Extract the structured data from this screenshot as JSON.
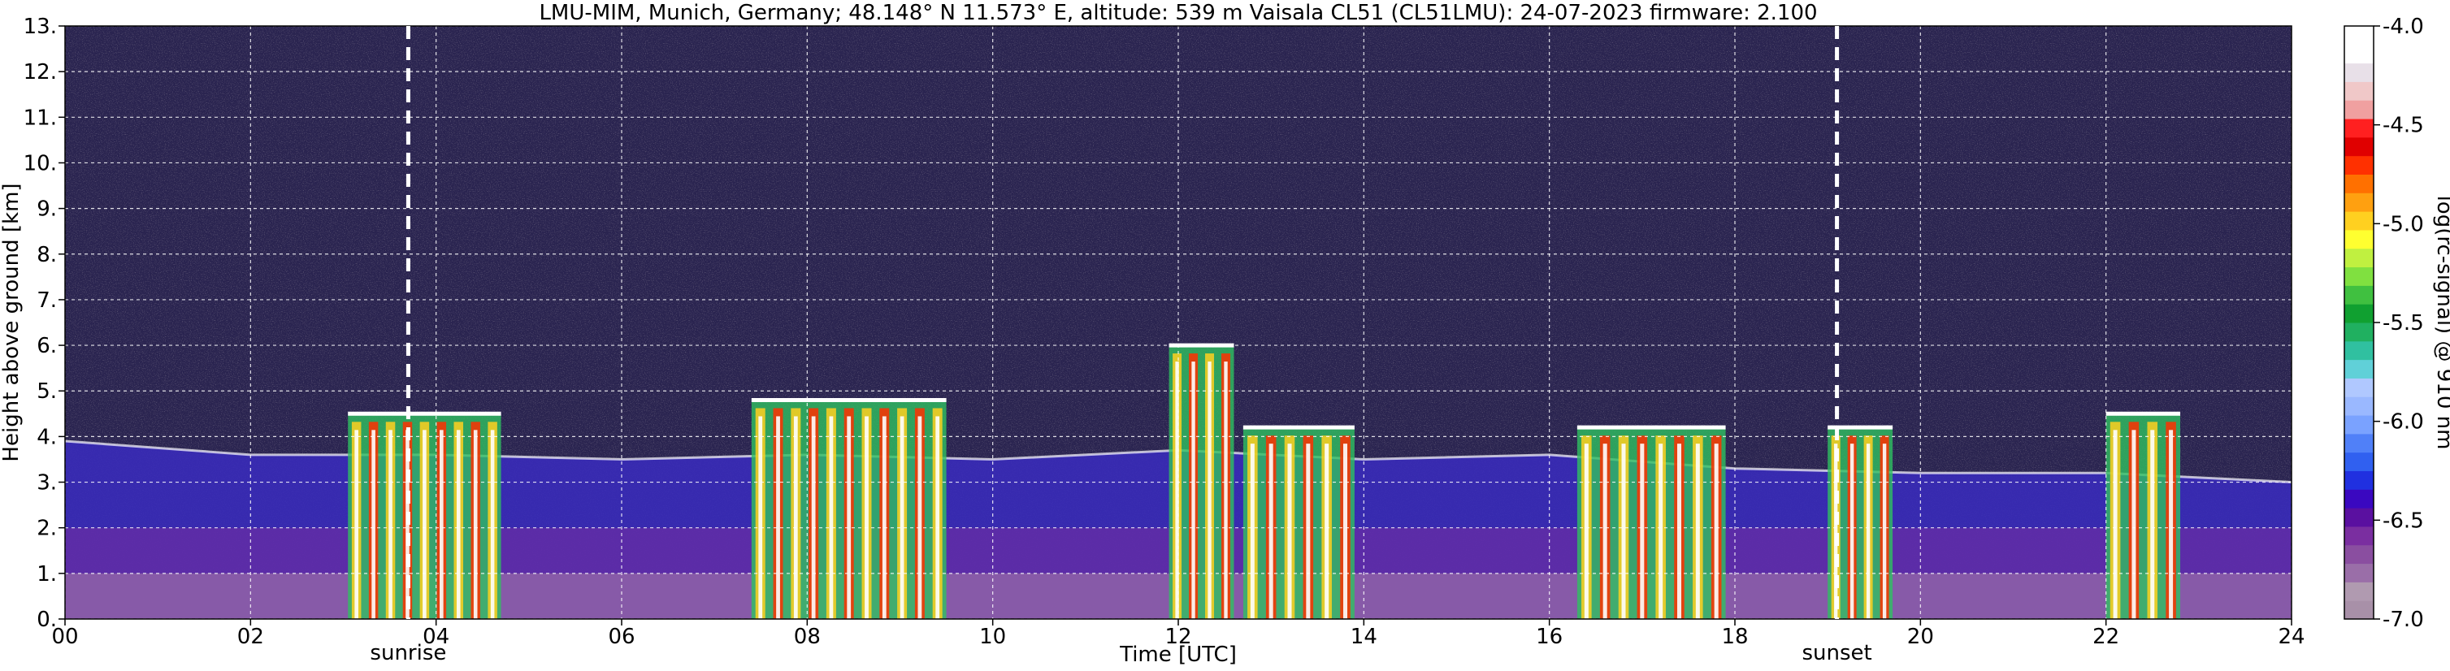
{
  "chart_data": {
    "type": "heatmap",
    "title": "LMU-MIM, Munich, Germany; 48.148° N 11.573° E, altitude: 539 m    Vaisala CL51 (CL51LMU): 24-07-2023    firmware: 2.100",
    "xlabel": "Time [UTC]",
    "ylabel": "Height above ground [km]",
    "xlim": [
      0,
      24
    ],
    "ylim": [
      0,
      13
    ],
    "x_ticks": [
      "00",
      "02",
      "04",
      "06",
      "08",
      "10",
      "12",
      "14",
      "16",
      "18",
      "20",
      "22",
      "24"
    ],
    "y_ticks": [
      "0.",
      "1.",
      "2.",
      "3.",
      "4.",
      "5.",
      "6.",
      "7.",
      "8.",
      "9.",
      "10.",
      "11.",
      "12.",
      "13."
    ],
    "grid": true,
    "sunrise": {
      "label": "sunrise",
      "time": 3.7
    },
    "sunset": {
      "label": "sunset",
      "time": 19.1
    },
    "colorbar": {
      "label": "log(rc-signal) @ 910 nm",
      "range": [
        -7.0,
        -4.0
      ],
      "ticks": [
        "-4.0",
        "-4.5",
        "-5.0",
        "-5.5",
        "-6.0",
        "-6.5",
        "-7.0"
      ],
      "colors": [
        "#a890a8",
        "#b09ab0",
        "#9a6ea8",
        "#8a4ea0",
        "#7a2ea0",
        "#5a10a0",
        "#3a08c0",
        "#2030e0",
        "#3060f0",
        "#5080f8",
        "#7aa2ff",
        "#9ab8ff",
        "#b0c8ff",
        "#60d0d8",
        "#30c0a0",
        "#20b060",
        "#10a030",
        "#40c040",
        "#80e040",
        "#c0f040",
        "#ffff30",
        "#ffd020",
        "#ffa010",
        "#ff7000",
        "#ff3000",
        "#e00000",
        "#ff2020",
        "#f0a0a0",
        "#f0c8c8",
        "#e8e0e8",
        "#ffffff",
        "#ffffff"
      ]
    },
    "aerosol_layer_top_km": [
      [
        0,
        3.9
      ],
      [
        2,
        3.6
      ],
      [
        4,
        3.6
      ],
      [
        6,
        3.5
      ],
      [
        8,
        3.6
      ],
      [
        10,
        3.5
      ],
      [
        12,
        3.7
      ],
      [
        14,
        3.5
      ],
      [
        16,
        3.6
      ],
      [
        18,
        3.3
      ],
      [
        20,
        3.2
      ],
      [
        22,
        3.2
      ],
      [
        24,
        3.0
      ]
    ],
    "convective_plumes": [
      {
        "t0": 3.05,
        "t1": 4.7,
        "top": 4.5
      },
      {
        "t0": 7.4,
        "t1": 9.5,
        "top": 4.8
      },
      {
        "t0": 11.9,
        "t1": 12.6,
        "top": 6.0
      },
      {
        "t0": 12.7,
        "t1": 13.9,
        "top": 4.2
      },
      {
        "t0": 16.3,
        "t1": 17.9,
        "top": 4.2
      },
      {
        "t0": 19.0,
        "t1": 19.7,
        "top": 4.2
      },
      {
        "t0": 22.0,
        "t1": 22.8,
        "top": 4.5
      }
    ]
  }
}
